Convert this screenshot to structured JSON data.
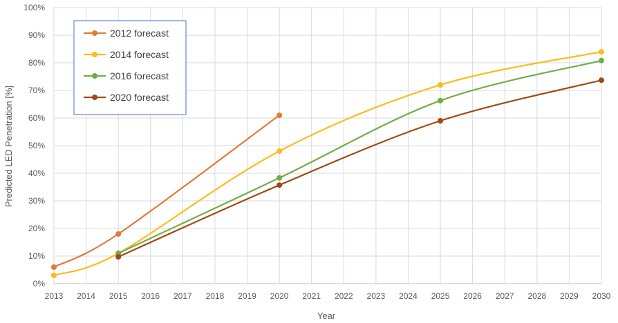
{
  "chart_data": {
    "type": "line",
    "title": "",
    "xlabel": "Year",
    "ylabel": "Predicted LED Penetration [%]",
    "xlim": [
      2013,
      2030
    ],
    "ylim": [
      0,
      100
    ],
    "x_ticks": [
      "2013",
      "2014",
      "2015",
      "2016",
      "2017",
      "2018",
      "2019",
      "2020",
      "2021",
      "2022",
      "2023",
      "2024",
      "2025",
      "2026",
      "2027",
      "2028",
      "2029",
      "2030"
    ],
    "y_ticks": [
      "0%",
      "10%",
      "20%",
      "30%",
      "40%",
      "50%",
      "60%",
      "70%",
      "80%",
      "90%",
      "100%"
    ],
    "grid": true,
    "legend_position": "top-left",
    "series": [
      {
        "name": "2012 forecast",
        "color": "#e07b39",
        "points": [
          [
            2013,
            6
          ],
          [
            2015,
            18
          ],
          [
            2020,
            61
          ]
        ]
      },
      {
        "name": "2014 forecast",
        "color": "#fbbc1c",
        "points": [
          [
            2013,
            3
          ],
          [
            2015,
            11
          ],
          [
            2020,
            48
          ],
          [
            2025,
            72
          ],
          [
            2030,
            84
          ]
        ]
      },
      {
        "name": "2016 forecast",
        "color": "#71ad47",
        "points": [
          [
            2015,
            11
          ],
          [
            2020,
            38.3
          ],
          [
            2025,
            66.3
          ],
          [
            2030,
            80.8
          ]
        ]
      },
      {
        "name": "2020 forecast",
        "color": "#9e4a12",
        "points": [
          [
            2015,
            9.7
          ],
          [
            2020,
            35.7
          ],
          [
            2025,
            59
          ],
          [
            2030,
            73.7
          ]
        ]
      }
    ]
  }
}
